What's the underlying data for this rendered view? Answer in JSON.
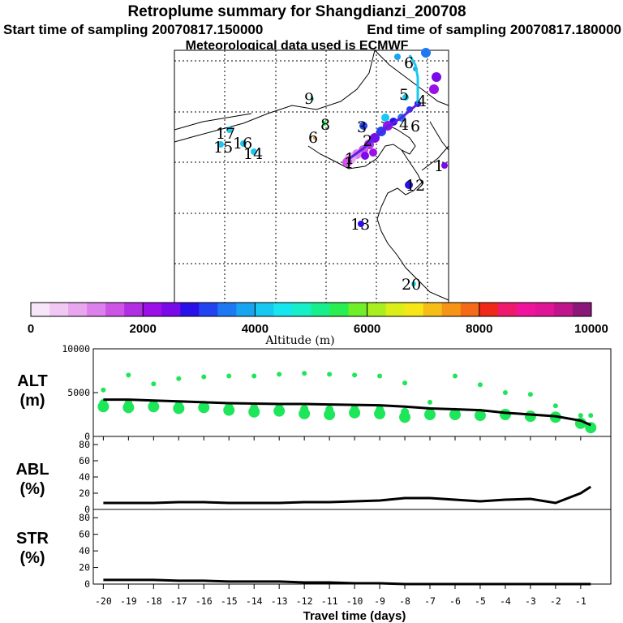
{
  "header": {
    "title": "Retroplume summary for Shangdianzi_200708",
    "start": "Start time of sampling 20070817.150000",
    "end": "End time of sampling 20070817.180000",
    "met": "Meteorological data used is ECMWF"
  },
  "colorbar": {
    "ticks": [
      "0",
      "2000",
      "4000",
      "6000",
      "8000",
      "10000"
    ],
    "label": "Altitude (m)",
    "colors": [
      "#f7e6f9",
      "#f0c8f3",
      "#e8a6ef",
      "#dc80eb",
      "#cc55e6",
      "#b22ee3",
      "#9b10e6",
      "#7b0ae8",
      "#2a10e8",
      "#2244f0",
      "#1e78f2",
      "#18a4f0",
      "#18c8f0",
      "#18e6ee",
      "#18eec8",
      "#18ee8c",
      "#28ee50",
      "#70ee28",
      "#a8ee20",
      "#dcee18",
      "#f6e618",
      "#f6bc18",
      "#f69418",
      "#f46a18",
      "#f02818",
      "#f01a6c",
      "#f0149c",
      "#e01498",
      "#c0148c",
      "#8a1878"
    ]
  },
  "map": {
    "labels": [
      {
        "text": "1",
        "color": "#000000"
      },
      {
        "text": "2",
        "color": "#000000"
      },
      {
        "text": "3",
        "color": "#000000"
      },
      {
        "text": "4",
        "color": "#000000"
      },
      {
        "text": "5",
        "color": "#000000"
      },
      {
        "text": "6",
        "color": "#000000"
      },
      {
        "text": "6",
        "color": "#000000"
      },
      {
        "text": "6",
        "color": "#000000"
      },
      {
        "text": "8",
        "color": "#000000"
      },
      {
        "text": "9",
        "color": "#000000"
      },
      {
        "text": "12",
        "color": "#000000"
      },
      {
        "text": "13",
        "color": "#000000"
      },
      {
        "text": "14",
        "color": "#000000"
      },
      {
        "text": "15",
        "color": "#000000"
      },
      {
        "text": "16",
        "color": "#000000"
      },
      {
        "text": "17",
        "color": "#000000"
      },
      {
        "text": "20",
        "color": "#000000"
      },
      {
        "text": "1",
        "color": "#000000"
      },
      {
        "text": "4",
        "color": "#000000"
      },
      {
        "text": "1",
        "color": "#000000"
      }
    ]
  },
  "chart_data": [
    {
      "type": "scatter",
      "panel": "ALT",
      "ylabel": "ALT (m)",
      "ylim": [
        0,
        10000
      ],
      "yticks": [
        "10000",
        "5000",
        "0"
      ],
      "xlim": [
        -20,
        0
      ],
      "x": [
        -20,
        -19,
        -18,
        -17,
        -16,
        -15,
        -14,
        -13,
        -12,
        -11,
        -10,
        -9,
        -8,
        -7,
        -6,
        -5,
        -4,
        -3,
        -2,
        -1,
        -0.6
      ],
      "mean_altitude": [
        4200,
        4200,
        4100,
        4000,
        3900,
        3800,
        3750,
        3700,
        3700,
        3650,
        3600,
        3550,
        3400,
        3200,
        3100,
        3000,
        2700,
        2500,
        2300,
        1800,
        1300
      ],
      "upper_points": [
        5300,
        7000,
        6000,
        6600,
        6800,
        6900,
        6900,
        7100,
        7200,
        7100,
        7000,
        6900,
        6100,
        3900,
        6900,
        5900,
        5000,
        4800,
        3500,
        2400,
        2400
      ],
      "lower_points": [
        3400,
        3300,
        3400,
        3200,
        3300,
        3000,
        2800,
        2900,
        2600,
        2500,
        2700,
        2600,
        2200,
        2500,
        2500,
        2400,
        2500,
        2300,
        2200,
        1500,
        1000
      ],
      "point_color": "#1ee65a"
    },
    {
      "type": "line",
      "panel": "ABL",
      "ylabel": "ABL (%)",
      "ylim": [
        0,
        90
      ],
      "yticks": [
        "80",
        "60",
        "40",
        "20",
        "0"
      ],
      "xlim": [
        -20,
        0
      ],
      "x": [
        -20,
        -19,
        -18,
        -17,
        -16,
        -15,
        -14,
        -13,
        -12,
        -11,
        -10,
        -9,
        -8,
        -7,
        -6,
        -5,
        -4,
        -3,
        -2,
        -1,
        -0.6
      ],
      "values": [
        8,
        8,
        8,
        9,
        9,
        8,
        8,
        8,
        9,
        9,
        10,
        11,
        14,
        14,
        12,
        10,
        12,
        13,
        8,
        20,
        28
      ]
    },
    {
      "type": "line",
      "panel": "STR",
      "ylabel": "STR (%)",
      "ylim": [
        0,
        90
      ],
      "yticks": [
        "80",
        "60",
        "40",
        "20",
        "0"
      ],
      "xlim": [
        -20,
        0
      ],
      "x": [
        -20,
        -19,
        -18,
        -17,
        -16,
        -15,
        -14,
        -13,
        -12,
        -11,
        -10,
        -9,
        -8,
        -7,
        -6,
        -5,
        -4,
        -3,
        -2,
        -1,
        -0.6
      ],
      "values": [
        5,
        5,
        5,
        4,
        4,
        3,
        3,
        3,
        2,
        2,
        1,
        1,
        0,
        0,
        0,
        0,
        0,
        0,
        0,
        0,
        0
      ]
    }
  ],
  "xaxis": {
    "ticks": [
      "-20",
      "-19",
      "-18",
      "-17",
      "-16",
      "-15",
      "-14",
      "-13",
      "-12",
      "-11",
      "-10",
      "-9",
      "-8",
      "-7",
      "-6",
      "-5",
      "-4",
      "-3",
      "-2",
      "-1"
    ],
    "label": "Travel time (days)"
  },
  "panels": {
    "alt_label_1": "ALT",
    "alt_label_2": "(m)",
    "abl_label_1": "ABL",
    "abl_label_2": "(%)",
    "str_label_1": "STR",
    "str_label_2": "(%)"
  }
}
